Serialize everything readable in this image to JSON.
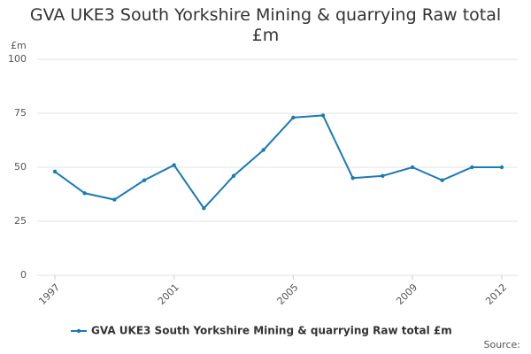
{
  "chart_data": {
    "type": "line",
    "title": "GVA UKE3 South Yorkshire Mining & quarrying Raw total £m",
    "y_label": "£m",
    "source": "Source:",
    "x": [
      1997,
      1998,
      1999,
      2000,
      2001,
      2002,
      2003,
      2004,
      2005,
      2006,
      2007,
      2008,
      2009,
      2010,
      2011,
      2012
    ],
    "series": [
      {
        "name": "GVA UKE3 South Yorkshire Mining & quarrying Raw total £m",
        "color": "#1a7ab8",
        "values": [
          48,
          38,
          35,
          44,
          51,
          31,
          46,
          58,
          73,
          74,
          45,
          46,
          50,
          44,
          50,
          50
        ]
      }
    ],
    "xlim": [
      1997,
      2012
    ],
    "xticks": [
      1997,
      2001,
      2005,
      2009,
      2012
    ],
    "ylim": [
      0,
      100
    ],
    "yticks": [
      0,
      25,
      50,
      75,
      100
    ],
    "grid": true
  }
}
